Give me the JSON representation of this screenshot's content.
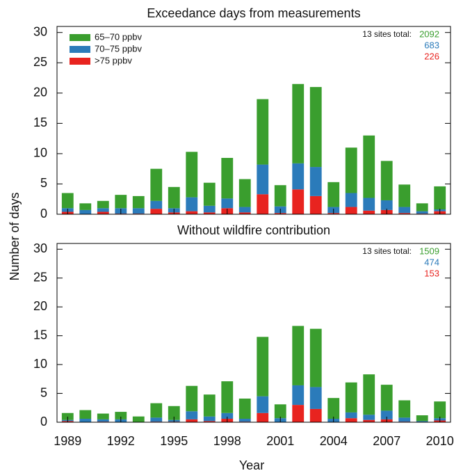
{
  "chart_data": [
    {
      "type": "stacked_bar",
      "title": "Exceedance days from measurements",
      "ylabel": "Number of days",
      "x": [
        1989,
        1990,
        1991,
        1992,
        1993,
        1994,
        1995,
        1996,
        1997,
        1998,
        1999,
        2000,
        2001,
        2002,
        2003,
        2004,
        2005,
        2006,
        2007,
        2008,
        2009,
        2010
      ],
      "xlim": [
        1988.4,
        2010.6
      ],
      "xticks": [
        1989,
        1992,
        1995,
        1998,
        2001,
        2004,
        2007,
        2010
      ],
      "ylim": [
        0,
        31
      ],
      "yticks": [
        0,
        5,
        10,
        15,
        20,
        25,
        30
      ],
      "legend": "upper left",
      "totals_label": "13 sites total:",
      "totals": [
        2092,
        683,
        226
      ],
      "series": [
        {
          "name": ">75 ppbv",
          "color": "#e8231f",
          "values": [
            0.4,
            0,
            0.4,
            0.1,
            0.1,
            0.9,
            0.3,
            0.5,
            0.3,
            1.0,
            0.3,
            3.3,
            0.2,
            4.1,
            3.0,
            0.2,
            1.2,
            0.6,
            0.7,
            0.2,
            0.1,
            0.5
          ]
        },
        {
          "name": "70–75 ppbv",
          "color": "#2b7bba",
          "values": [
            0.6,
            0.7,
            0.6,
            0.9,
            0.9,
            1.3,
            0.7,
            2.3,
            1.1,
            1.6,
            0.9,
            4.9,
            1.1,
            4.3,
            4.8,
            1.0,
            2.3,
            2.1,
            1.6,
            1.0,
            0.4,
            0.3
          ]
        },
        {
          "name": "65–70 ppbv",
          "color": "#3a9e2e",
          "values": [
            2.5,
            1.1,
            1.2,
            2.2,
            2.0,
            5.3,
            3.5,
            7.5,
            3.8,
            6.7,
            4.6,
            10.8,
            3.5,
            13.1,
            13.2,
            4.1,
            7.5,
            10.3,
            6.5,
            3.7,
            1.3,
            3.8
          ]
        }
      ]
    },
    {
      "type": "stacked_bar",
      "title": "Without wildfire contribution",
      "xlabel": "Year",
      "x": [
        1989,
        1990,
        1991,
        1992,
        1993,
        1994,
        1995,
        1996,
        1997,
        1998,
        1999,
        2000,
        2001,
        2002,
        2003,
        2004,
        2005,
        2006,
        2007,
        2008,
        2009,
        2010
      ],
      "xlim": [
        1988.4,
        2010.6
      ],
      "xticks": [
        1989,
        1992,
        1995,
        1998,
        2001,
        2004,
        2007,
        2010
      ],
      "ylim": [
        0,
        31
      ],
      "yticks": [
        0,
        5,
        10,
        15,
        20,
        25,
        30
      ],
      "totals_label": "13 sites total:",
      "totals": [
        1509,
        474,
        153
      ],
      "series": [
        {
          "color": "#e8231f",
          "values": [
            0.2,
            0,
            0.1,
            0,
            0,
            0.1,
            0.1,
            0.5,
            0.2,
            0.6,
            0.1,
            1.6,
            0,
            3.0,
            2.3,
            0,
            0.7,
            0.4,
            0.5,
            0.1,
            0,
            0.3
          ]
        },
        {
          "color": "#2b7bba",
          "values": [
            0.2,
            0.6,
            0.4,
            0.5,
            0,
            0.7,
            0.3,
            1.4,
            0.8,
            1.0,
            0.5,
            2.9,
            0.7,
            3.4,
            3.8,
            0.6,
            1.0,
            0.9,
            1.5,
            0.7,
            0.2,
            0.4
          ]
        },
        {
          "color": "#3a9e2e",
          "values": [
            1.2,
            1.5,
            1.0,
            1.3,
            1.0,
            2.5,
            2.4,
            4.4,
            3.8,
            5.5,
            3.5,
            10.3,
            2.4,
            10.3,
            10.1,
            3.6,
            5.2,
            7.0,
            4.5,
            3.0,
            1.0,
            2.9
          ]
        }
      ]
    }
  ]
}
